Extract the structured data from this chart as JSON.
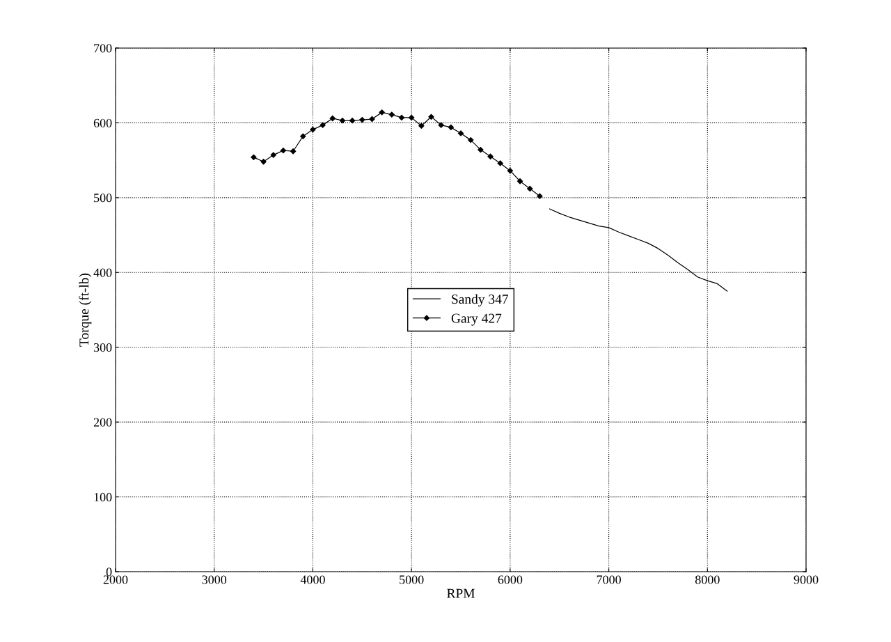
{
  "chart_data": {
    "type": "line",
    "xlabel": "RPM",
    "ylabel": "Torque (ft-lb)",
    "xlim": [
      2000,
      9000
    ],
    "xticks": [
      2000,
      3000,
      4000,
      5000,
      6000,
      7000,
      8000,
      9000
    ],
    "ylim": [
      0,
      700
    ],
    "yticks": [
      0,
      100,
      200,
      300,
      400,
      500,
      600,
      700
    ],
    "grid": true,
    "line_style": "solid",
    "legend": "center",
    "series": [
      {
        "name": "Sandy 347",
        "color": "#000000",
        "marker": "none",
        "x": [
          6400,
          6500,
          6600,
          6700,
          6800,
          6900,
          7000,
          7100,
          7200,
          7300,
          7400,
          7500,
          7600,
          7700,
          7800,
          7900,
          8000,
          8100,
          8200
        ],
        "values": [
          485,
          479,
          474,
          470,
          466,
          462,
          460,
          454,
          449,
          444,
          439,
          432,
          423,
          413,
          404,
          394,
          389,
          385,
          375
        ]
      },
      {
        "name": "Gary 427",
        "color": "#000000",
        "marker": "diamond",
        "x": [
          3400,
          3500,
          3600,
          3700,
          3800,
          3900,
          4000,
          4100,
          4200,
          4300,
          4400,
          4500,
          4600,
          4700,
          4800,
          4900,
          5000,
          5100,
          5200,
          5300,
          5400,
          5500,
          5600,
          5700,
          5800,
          5900,
          6000,
          6100,
          6200,
          6300
        ],
        "values": [
          554,
          548,
          557,
          563,
          562,
          582,
          591,
          597,
          606,
          603,
          603,
          604,
          605,
          614,
          611,
          607,
          607,
          596,
          608,
          597,
          594,
          586,
          577,
          564,
          555,
          546,
          536,
          522,
          512,
          502
        ]
      }
    ]
  }
}
